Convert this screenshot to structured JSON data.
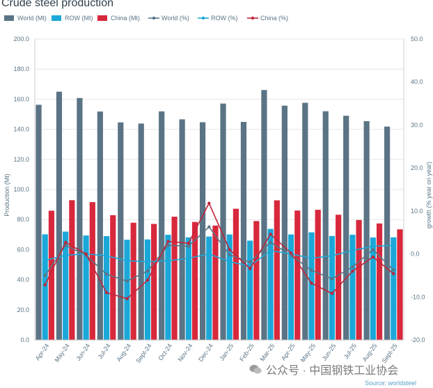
{
  "chart_data": {
    "type": "bar",
    "title": "Crude steel production",
    "ylabel": "Production (Mt)",
    "y2label": "growth (% year on year)",
    "ylim": [
      0,
      200
    ],
    "yticks": [
      "0.0",
      "20.0",
      "40.0",
      "60.0",
      "80.0",
      "100.0",
      "120.0",
      "140.0",
      "160.0",
      "180.0",
      "200.0"
    ],
    "y2lim": [
      -20,
      50
    ],
    "y2ticks": [
      "-20.0",
      "-10.0",
      "0.0",
      "10.0",
      "20.0",
      "30.0",
      "40.0",
      "50.0"
    ],
    "categories": [
      "Apr-24",
      "May-24",
      "Jun-24",
      "Jul-24",
      "Aug-24",
      "Sept-24",
      "Oct-24",
      "Nov-24",
      "Dec-24",
      "Jan-25",
      "Feb-25",
      "Mar-25",
      "Apr-25",
      "May-25",
      "Jun-25",
      "Jul-25",
      "Aug-25",
      "Sept-25"
    ],
    "bar_series": [
      {
        "name": "World (Mt)",
        "color": "#5a7485",
        "values": [
          156.3,
          165.0,
          160.8,
          151.8,
          144.6,
          143.8,
          151.9,
          146.6,
          144.7,
          157.1,
          144.9,
          166.1,
          155.7,
          157.6,
          152.0,
          149.0,
          145.4,
          141.8
        ]
      },
      {
        "name": "ROW (Mt)",
        "color": "#1ba8d8",
        "values": [
          70.2,
          72.0,
          69.4,
          69.0,
          66.6,
          66.8,
          69.9,
          68.2,
          68.7,
          70.1,
          66.0,
          73.8,
          70.1,
          71.5,
          69.1,
          69.9,
          68.1,
          68.2
        ]
      },
      {
        "name": "China (Mt)",
        "color": "#d8283c",
        "values": [
          85.9,
          92.9,
          91.6,
          82.9,
          77.9,
          77.1,
          81.9,
          78.4,
          76.0,
          87.2,
          79.0,
          92.8,
          86.0,
          86.5,
          83.2,
          79.7,
          77.4,
          73.5
        ]
      }
    ],
    "line_series": [
      {
        "name": "World (%)",
        "color": "#5a7485",
        "values": [
          -5.0,
          2.0,
          -0.3,
          -4.7,
          -6.3,
          -4.0,
          2.0,
          1.8,
          6.3,
          -0.2,
          -1.9,
          2.7,
          -0.3,
          -3.8,
          -5.8,
          -3.0,
          1.0,
          -3.7
        ]
      },
      {
        "name": "ROW (%)",
        "color": "#1ba8d8",
        "values": [
          -1.5,
          -0.3,
          0.0,
          -0.4,
          -1.6,
          -1.8,
          -1.6,
          -1.0,
          0.0,
          -1.8,
          -2.8,
          0.8,
          0.0,
          -1.0,
          -0.4,
          0.8,
          1.8,
          2.0
        ]
      },
      {
        "name": "China (%)",
        "color": "#c0253a",
        "values": [
          -7.2,
          2.7,
          0.0,
          -9.0,
          -10.4,
          -6.1,
          2.9,
          2.5,
          11.8,
          1.0,
          -3.4,
          4.6,
          0.2,
          -6.8,
          -9.2,
          -4.0,
          -0.7,
          -4.6
        ]
      }
    ]
  },
  "watermark": "公众号 · 中国钢铁工业协会",
  "source": "Source: worldsteel"
}
